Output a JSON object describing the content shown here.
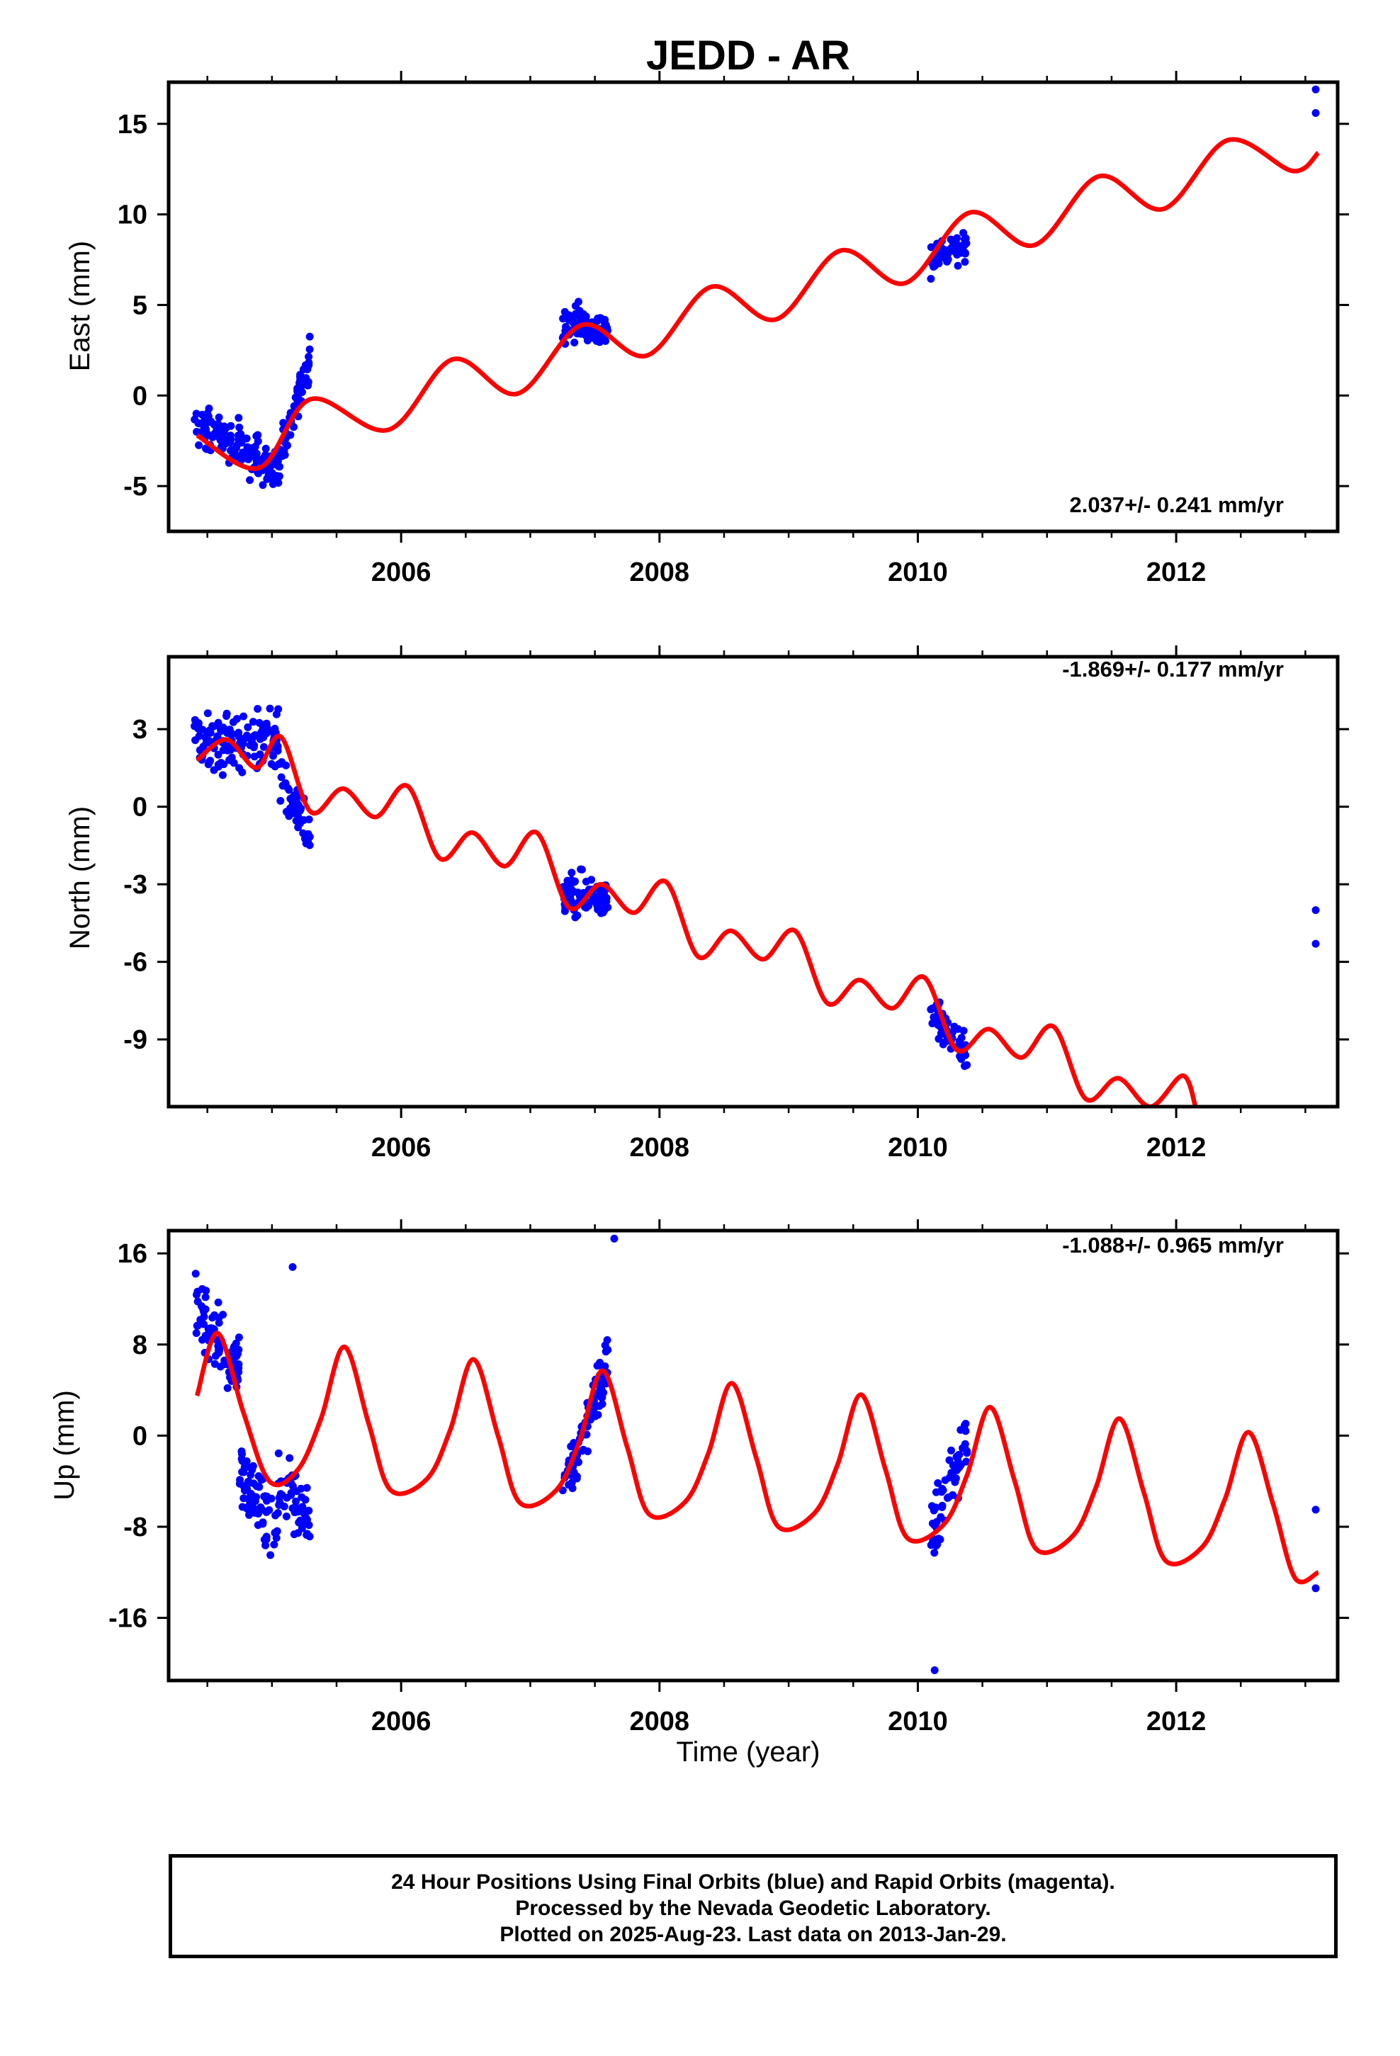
{
  "chart_data": {
    "title": "JEDD - AR",
    "xlabel": "Time (year)",
    "x_tick_labels": [
      "2006",
      "2008",
      "2010",
      "2012"
    ],
    "x_range": [
      2004.2,
      2013.25
    ],
    "colors": {
      "points": "#0000ff",
      "model": "#ff0000",
      "frame": "#000000"
    },
    "caption": [
      "24 Hour Positions Using Final Orbits (blue) and Rapid Orbits (magenta).",
      "Processed by the Nevada Geodetic Laboratory.",
      "Plotted on 2025-Aug-23. Last data on 2013-Jan-29."
    ],
    "panels": [
      {
        "id": "east",
        "type": "scatter",
        "ylabel": "East (mm)",
        "ylim": [
          -7.5,
          17.3
        ],
        "y_ticks": [
          -5,
          0,
          5,
          10,
          15
        ],
        "y_tick_labels": [
          "-5",
          "0",
          "5",
          "10",
          "15"
        ],
        "rate_label": "2.037+/- 0.241 mm/yr",
        "rate_position": "bottom-right",
        "series": [
          {
            "type": "scatter",
            "segments": [
              {
                "x_range": [
                  2004.4,
                  2004.75
                ],
                "n": 70,
                "center": [
                  -1.8,
                  -2.6
                ],
                "spread": 1.3
              },
              {
                "x_range": [
                  2004.75,
                  2005.05
                ],
                "n": 70,
                "center": [
                  -3.0,
                  -4.2
                ],
                "spread": 1.3
              },
              {
                "x_range": [
                  2005.05,
                  2005.3
                ],
                "n": 60,
                "center": [
                  -3.5,
                  2.3
                ],
                "spread": 1.2
              },
              {
                "x_range": [
                  2007.25,
                  2007.6
                ],
                "n": 90,
                "center": [
                  4.0,
                  3.6
                ],
                "spread": 1.1
              },
              {
                "x_range": [
                  2010.1,
                  2010.38
                ],
                "n": 60,
                "center": [
                  7.4,
                  8.6
                ],
                "spread": 1.0
              }
            ],
            "extra_points": [
              [
                2013.08,
                16.9
              ],
              [
                2013.08,
                15.6
              ]
            ]
          },
          {
            "type": "line",
            "model": "seasonal-trend",
            "segments": [
              {
                "x": [
                  2004.42,
                  2004.9,
                  2005.3,
                  2005.9,
                  2006.4,
                  2006.9,
                  2007.4,
                  2007.9,
                  2008.4,
                  2008.9,
                  2009.4,
                  2009.9,
                  2010.4,
                  2010.9,
                  2011.4,
                  2011.9,
                  2012.4,
                  2012.9,
                  2013.1
                ],
                "y": [
                  -2.2,
                  -4.0,
                  -0.2,
                  -1.9,
                  2.0,
                  0.1,
                  3.9,
                  2.2,
                  6.0,
                  4.2,
                  8.0,
                  6.2,
                  10.1,
                  8.3,
                  12.1,
                  10.3,
                  14.1,
                  12.4,
                  13.4
                ]
              }
            ]
          }
        ]
      },
      {
        "id": "north",
        "type": "scatter",
        "ylabel": "North (mm)",
        "ylim": [
          -11.6,
          5.8
        ],
        "y_ticks": [
          -9,
          -6,
          -3,
          0,
          3
        ],
        "y_tick_labels": [
          "-9",
          "-6",
          "-3",
          "0",
          "3"
        ],
        "rate_label": "-1.869+/- 0.177 mm/yr",
        "rate_position": "top-right",
        "series": [
          {
            "type": "scatter",
            "segments": [
              {
                "x_range": [
                  2004.4,
                  2004.75
                ],
                "n": 70,
                "center": [
                  2.8,
                  2.3
                ],
                "spread": 1.3
              },
              {
                "x_range": [
                  2004.75,
                  2005.05
                ],
                "n": 60,
                "center": [
                  2.2,
                  2.8
                ],
                "spread": 1.3
              },
              {
                "x_range": [
                  2005.05,
                  2005.3
                ],
                "n": 50,
                "center": [
                  1.0,
                  -1.2
                ],
                "spread": 1.0
              },
              {
                "x_range": [
                  2007.25,
                  2007.6
                ],
                "n": 90,
                "center": [
                  -3.4,
                  -3.5
                ],
                "spread": 0.9
              },
              {
                "x_range": [
                  2010.1,
                  2010.38
                ],
                "n": 60,
                "center": [
                  -8.0,
                  -9.5
                ],
                "spread": 0.8
              }
            ],
            "extra_points": [
              [
                2013.08,
                -4.0
              ],
              [
                2013.08,
                -5.3
              ]
            ]
          },
          {
            "type": "line",
            "model": "seasonal-trend",
            "segments": [
              {
                "x": [
                  2004.42,
                  2004.65,
                  2004.88,
                  2005.07,
                  2005.3,
                  2005.55,
                  2005.8,
                  2006.05,
                  2006.3,
                  2006.55,
                  2006.8,
                  2007.05,
                  2007.3,
                  2007.55,
                  2007.8,
                  2008.05,
                  2008.3,
                  2008.55,
                  2008.8,
                  2009.05,
                  2009.3,
                  2009.55,
                  2009.8,
                  2010.05,
                  2010.3,
                  2010.55,
                  2010.8,
                  2011.05,
                  2011.3,
                  2011.55,
                  2011.8,
                  2012.05,
                  2012.15
                ],
                "y": [
                  1.8,
                  2.6,
                  1.5,
                  2.7,
                  -0.2,
                  0.7,
                  -0.4,
                  0.8,
                  -2.0,
                  -1.0,
                  -2.3,
                  -1.0,
                  -3.9,
                  -3.0,
                  -4.1,
                  -2.9,
                  -5.8,
                  -4.8,
                  -5.9,
                  -4.8,
                  -7.6,
                  -6.7,
                  -7.8,
                  -6.6,
                  -9.4,
                  -8.6,
                  -9.7,
                  -8.5,
                  -11.3,
                  -10.5,
                  -11.6,
                  -10.4,
                  -11.6
                ]
              }
            ]
          }
        ]
      },
      {
        "id": "up",
        "type": "scatter",
        "ylabel": "Up (mm)",
        "ylim": [
          -21.5,
          18.0
        ],
        "y_ticks": [
          -16,
          -8,
          0,
          8,
          16
        ],
        "y_tick_labels": [
          "-16",
          "-8",
          "0",
          "8",
          "16"
        ],
        "rate_label": "-1.088+/- 0.965 mm/yr",
        "rate_position": "top-right",
        "series": [
          {
            "type": "scatter",
            "segments": [
              {
                "x_range": [
                  2004.4,
                  2004.75
                ],
                "n": 75,
                "center": [
                  11.0,
                  6.0
                ],
                "spread": 3.0
              },
              {
                "x_range": [
                  2004.75,
                  2005.05
                ],
                "n": 70,
                "center": [
                  -3.0,
                  -9.0
                ],
                "spread": 3.0
              },
              {
                "x_range": [
                  2005.05,
                  2005.3
                ],
                "n": 55,
                "center": [
                  -4.0,
                  -7.0
                ],
                "spread": 3.0
              },
              {
                "x_range": [
                  2007.25,
                  2007.6
                ],
                "n": 90,
                "center": [
                  -5.0,
                  6.5
                ],
                "spread": 3.0
              },
              {
                "x_range": [
                  2010.1,
                  2010.38
                ],
                "n": 60,
                "center": [
                  -9.0,
                  0.0
                ],
                "spread": 3.5
              }
            ],
            "extra_points": [
              [
                2013.08,
                -6.5
              ],
              [
                2013.08,
                -13.4
              ],
              [
                2005.16,
                14.8
              ],
              [
                2010.13,
                -20.6
              ],
              [
                2007.65,
                17.3
              ]
            ]
          },
          {
            "type": "line",
            "model": "seasonal-trend",
            "segments": [
              {
                "x": [
                  2004.42,
                  2004.58,
                  2004.78,
                  2004.98,
                  2005.2,
                  2005.38,
                  2005.56,
                  2005.75,
                  2005.92,
                  2006.2,
                  2006.38,
                  2006.56,
                  2006.75,
                  2006.92,
                  2007.2,
                  2007.38,
                  2007.56,
                  2007.75,
                  2007.92,
                  2008.2,
                  2008.38,
                  2008.56,
                  2008.75,
                  2008.92,
                  2009.2,
                  2009.38,
                  2009.56,
                  2009.75,
                  2009.92,
                  2010.2,
                  2010.38,
                  2010.56,
                  2010.75,
                  2010.92,
                  2011.2,
                  2011.38,
                  2011.56,
                  2011.75,
                  2011.92,
                  2012.2,
                  2012.38,
                  2012.56,
                  2012.75,
                  2012.92,
                  2013.1
                ],
                "y": [
                  3.5,
                  9.0,
                  2.0,
                  -4.0,
                  -3.0,
                  1.5,
                  7.8,
                  1.0,
                  -4.8,
                  -3.8,
                  0.5,
                  6.7,
                  0.0,
                  -5.9,
                  -4.8,
                  -0.5,
                  5.7,
                  -1.0,
                  -6.9,
                  -5.8,
                  -1.5,
                  4.6,
                  -2.0,
                  -8.0,
                  -6.8,
                  -2.5,
                  3.6,
                  -3.0,
                  -9.0,
                  -7.8,
                  -3.5,
                  2.5,
                  -4.0,
                  -10.0,
                  -8.8,
                  -4.5,
                  1.5,
                  -5.0,
                  -11.0,
                  -9.8,
                  -5.5,
                  0.3,
                  -6.0,
                  -12.5,
                  -12.0
                ]
              }
            ]
          }
        ]
      }
    ]
  }
}
